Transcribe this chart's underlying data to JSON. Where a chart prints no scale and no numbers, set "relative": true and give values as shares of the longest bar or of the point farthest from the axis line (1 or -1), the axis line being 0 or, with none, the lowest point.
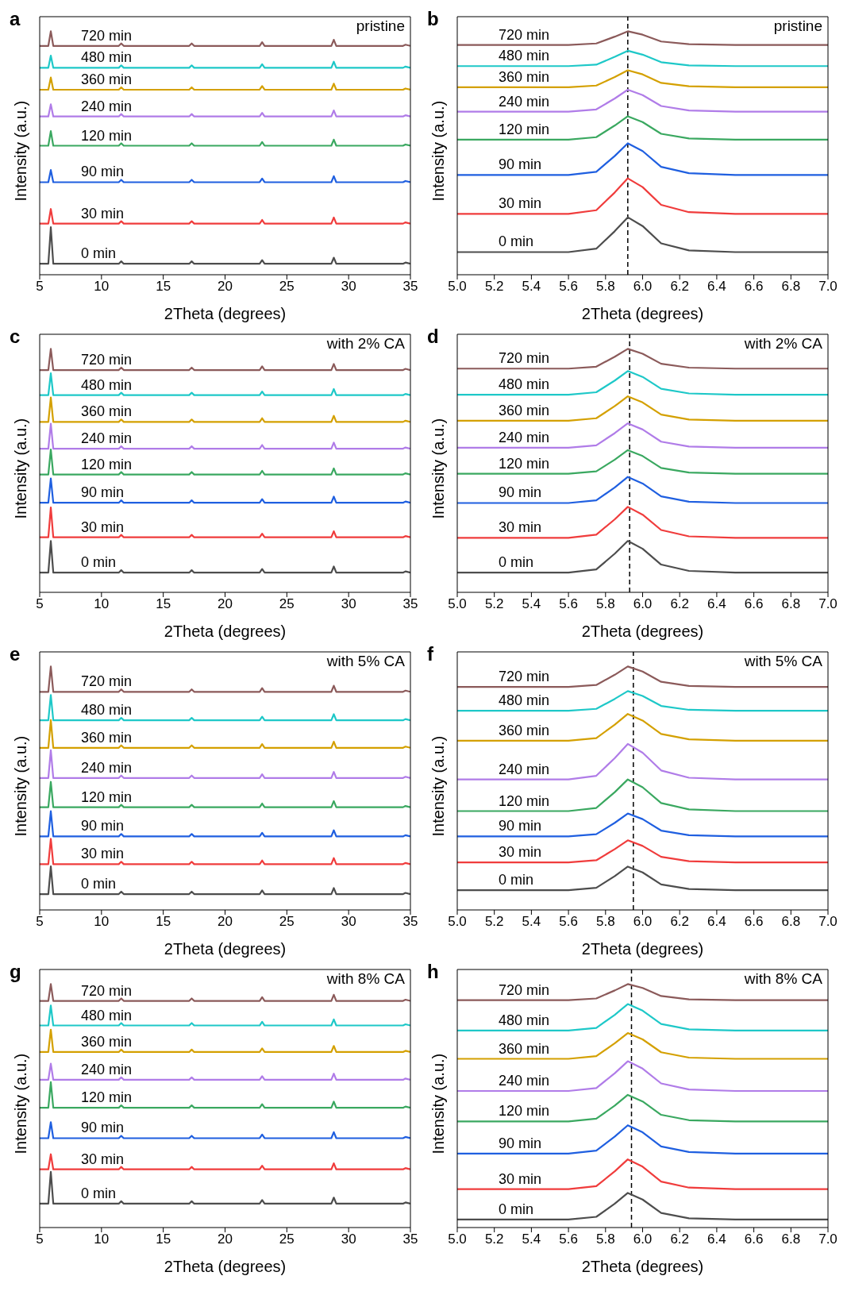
{
  "chart_data": [
    {
      "type": "line",
      "relative": true,
      "title": "a",
      "annotations": [
        "pristine"
      ],
      "xlabel": "2Theta (degrees)",
      "ylabel": "Intensity (a.u.)",
      "xlim": [
        5,
        35
      ],
      "xticks": [
        5,
        10,
        15,
        20,
        25,
        30,
        35
      ],
      "x": [
        5,
        5.7,
        5.9,
        6.1,
        11.4,
        11.6,
        11.8,
        17.1,
        17.3,
        17.5,
        22.8,
        23,
        23.2,
        28.6,
        28.8,
        29,
        34.4,
        34.6,
        35
      ],
      "series": [
        {
          "name": "0 min",
          "color": "#4d4d4d",
          "values": [
            0.045,
            0.045,
            0.195,
            0.045,
            0.045,
            0.055,
            0.045,
            0.045,
            0.055,
            0.045,
            0.045,
            0.06,
            0.045,
            0.045,
            0.07,
            0.045,
            0.045,
            0.05,
            0.045
          ]
        },
        {
          "name": "30 min",
          "color": "#f03c3c",
          "values": [
            0.21,
            0.21,
            0.27,
            0.21,
            0.21,
            0.22,
            0.21,
            0.21,
            0.22,
            0.21,
            0.21,
            0.225,
            0.21,
            0.21,
            0.235,
            0.21,
            0.21,
            0.215,
            0.21
          ]
        },
        {
          "name": "90 min",
          "color": "#1f5fe0",
          "values": [
            0.38,
            0.38,
            0.43,
            0.38,
            0.38,
            0.39,
            0.38,
            0.38,
            0.39,
            0.38,
            0.38,
            0.395,
            0.38,
            0.38,
            0.405,
            0.38,
            0.38,
            0.385,
            0.38
          ]
        },
        {
          "name": "120 min",
          "color": "#3aa860",
          "values": [
            0.53,
            0.53,
            0.59,
            0.53,
            0.53,
            0.54,
            0.53,
            0.53,
            0.54,
            0.53,
            0.53,
            0.545,
            0.53,
            0.53,
            0.555,
            0.53,
            0.53,
            0.535,
            0.53
          ]
        },
        {
          "name": "240 min",
          "color": "#b07ce8",
          "values": [
            0.65,
            0.65,
            0.7,
            0.65,
            0.65,
            0.66,
            0.65,
            0.65,
            0.66,
            0.65,
            0.65,
            0.665,
            0.65,
            0.65,
            0.675,
            0.65,
            0.65,
            0.655,
            0.65
          ]
        },
        {
          "name": "360 min",
          "color": "#d4a000",
          "values": [
            0.76,
            0.76,
            0.81,
            0.76,
            0.76,
            0.77,
            0.76,
            0.76,
            0.77,
            0.76,
            0.76,
            0.775,
            0.76,
            0.76,
            0.785,
            0.76,
            0.76,
            0.765,
            0.76
          ]
        },
        {
          "name": "480 min",
          "color": "#1ec8c8",
          "values": [
            0.85,
            0.85,
            0.9,
            0.85,
            0.85,
            0.86,
            0.85,
            0.85,
            0.86,
            0.85,
            0.85,
            0.865,
            0.85,
            0.85,
            0.875,
            0.85,
            0.85,
            0.855,
            0.85
          ]
        },
        {
          "name": "720 min",
          "color": "#8b5a5a",
          "values": [
            0.94,
            0.94,
            1,
            0.94,
            0.94,
            0.95,
            0.94,
            0.94,
            0.95,
            0.94,
            0.94,
            0.955,
            0.94,
            0.94,
            0.965,
            0.94,
            0.94,
            0.945,
            0.94
          ]
        }
      ]
    },
    {
      "type": "line",
      "relative": true,
      "title": "b",
      "annotations": [
        "pristine"
      ],
      "xlabel": "2Theta (degrees)",
      "ylabel": "Intensity (a.u.)",
      "xlim": [
        5,
        7
      ],
      "xticks": [
        {
          "value": 5,
          "label": "5.0"
        },
        5.2,
        5.4,
        5.6,
        5.8,
        {
          "value": 6,
          "label": "6.0"
        },
        6.2,
        6.4,
        6.6,
        6.8,
        {
          "value": 7,
          "label": "7.0"
        }
      ],
      "ref_lines": [
        {
          "axis": "x",
          "value": 5.92,
          "line_style": "dashed"
        }
      ],
      "x": [
        5,
        5.6,
        5.75,
        5.85,
        5.92,
        6,
        6.1,
        6.25,
        6.5,
        7
      ],
      "series": [
        {
          "name": "0 min",
          "color": "#4d4d4d",
          "values": [
            0.093,
            0.093,
            0.107,
            0.179,
            0.236,
            0.2,
            0.129,
            0.1,
            0.093,
            0.093
          ]
        },
        {
          "name": "30 min",
          "color": "#f03c3c",
          "values": [
            0.25,
            0.25,
            0.265,
            0.338,
            0.396,
            0.36,
            0.287,
            0.257,
            0.25,
            0.25
          ]
        },
        {
          "name": "90 min",
          "color": "#1f5fe0",
          "values": [
            0.41,
            0.41,
            0.423,
            0.488,
            0.54,
            0.508,
            0.443,
            0.417,
            0.41,
            0.41
          ]
        },
        {
          "name": "120 min",
          "color": "#3aa860",
          "values": [
            0.555,
            0.555,
            0.565,
            0.613,
            0.651,
            0.627,
            0.579,
            0.56,
            0.555,
            0.555
          ]
        },
        {
          "name": "240 min",
          "color": "#b07ce8",
          "values": [
            0.67,
            0.67,
            0.679,
            0.724,
            0.76,
            0.738,
            0.693,
            0.675,
            0.67,
            0.67
          ]
        },
        {
          "name": "360 min",
          "color": "#d4a000",
          "values": [
            0.77,
            0.77,
            0.777,
            0.812,
            0.84,
            0.823,
            0.788,
            0.774,
            0.77,
            0.77
          ]
        },
        {
          "name": "480 min",
          "color": "#1ec8c8",
          "values": [
            0.857,
            0.857,
            0.863,
            0.895,
            0.92,
            0.904,
            0.873,
            0.86,
            0.857,
            0.857
          ]
        },
        {
          "name": "720 min",
          "color": "#8b5a5a",
          "values": [
            0.944,
            0.944,
            0.95,
            0.978,
            1,
            0.986,
            0.958,
            0.947,
            0.944,
            0.944
          ]
        }
      ]
    },
    {
      "type": "line",
      "relative": true,
      "title": "c",
      "annotations": [
        "with 2% CA"
      ],
      "xlabel": "2Theta (degrees)",
      "ylabel": "Intensity (a.u.)",
      "xlim": [
        5,
        35
      ],
      "xticks": [
        5,
        10,
        15,
        20,
        25,
        30,
        35
      ],
      "x": [
        5,
        5.7,
        5.9,
        6.1,
        11.4,
        11.6,
        11.8,
        17.1,
        17.3,
        17.5,
        22.8,
        23,
        23.2,
        28.6,
        28.8,
        29,
        34.4,
        34.6,
        35
      ],
      "series": [
        {
          "name": "0 min",
          "color": "#4d4d4d",
          "values": [
            0.081,
            0.081,
            0.211,
            0.081,
            0.081,
            0.091,
            0.081,
            0.081,
            0.091,
            0.081,
            0.081,
            0.096,
            0.081,
            0.081,
            0.106,
            0.081,
            0.081,
            0.086,
            0.081
          ]
        },
        {
          "name": "30 min",
          "color": "#f03c3c",
          "values": [
            0.226,
            0.226,
            0.349,
            0.226,
            0.226,
            0.236,
            0.226,
            0.226,
            0.236,
            0.226,
            0.226,
            0.241,
            0.226,
            0.226,
            0.251,
            0.226,
            0.226,
            0.231,
            0.226
          ]
        },
        {
          "name": "90 min",
          "color": "#1f5fe0",
          "values": [
            0.368,
            0.368,
            0.468,
            0.368,
            0.368,
            0.378,
            0.368,
            0.368,
            0.378,
            0.368,
            0.368,
            0.383,
            0.368,
            0.368,
            0.393,
            0.368,
            0.368,
            0.373,
            0.368
          ]
        },
        {
          "name": "120 min",
          "color": "#3aa860",
          "values": [
            0.484,
            0.484,
            0.587,
            0.484,
            0.484,
            0.494,
            0.484,
            0.484,
            0.494,
            0.484,
            0.484,
            0.499,
            0.484,
            0.484,
            0.509,
            0.484,
            0.484,
            0.489,
            0.484
          ]
        },
        {
          "name": "240 min",
          "color": "#b07ce8",
          "values": [
            0.59,
            0.59,
            0.693,
            0.59,
            0.59,
            0.6,
            0.59,
            0.59,
            0.6,
            0.59,
            0.59,
            0.605,
            0.59,
            0.59,
            0.615,
            0.59,
            0.59,
            0.595,
            0.59
          ]
        },
        {
          "name": "360 min",
          "color": "#d4a000",
          "values": [
            0.7,
            0.7,
            0.8,
            0.7,
            0.7,
            0.71,
            0.7,
            0.7,
            0.71,
            0.7,
            0.7,
            0.715,
            0.7,
            0.7,
            0.725,
            0.7,
            0.7,
            0.705,
            0.7
          ]
        },
        {
          "name": "480 min",
          "color": "#1ec8c8",
          "values": [
            0.81,
            0.81,
            0.9,
            0.81,
            0.81,
            0.82,
            0.81,
            0.81,
            0.82,
            0.81,
            0.81,
            0.825,
            0.81,
            0.81,
            0.835,
            0.81,
            0.81,
            0.815,
            0.81
          ]
        },
        {
          "name": "720 min",
          "color": "#8b5a5a",
          "values": [
            0.913,
            0.913,
            1,
            0.913,
            0.913,
            0.923,
            0.913,
            0.913,
            0.923,
            0.913,
            0.913,
            0.928,
            0.913,
            0.913,
            0.938,
            0.913,
            0.913,
            0.918,
            0.913
          ]
        }
      ]
    },
    {
      "type": "line",
      "relative": true,
      "title": "d",
      "annotations": [
        "with 2% CA"
      ],
      "xlabel": "2Theta (degrees)",
      "ylabel": "Intensity (a.u.)",
      "xlim": [
        5,
        7
      ],
      "xticks": [
        {
          "value": 5,
          "label": "5.0"
        },
        5.2,
        5.4,
        5.6,
        5.8,
        {
          "value": 6,
          "label": "6.0"
        },
        6.2,
        6.4,
        6.6,
        6.8,
        {
          "value": 7,
          "label": "7.0"
        }
      ],
      "ref_lines": [
        {
          "axis": "x",
          "value": 5.93,
          "line_style": "dashed"
        }
      ],
      "x": [
        5,
        5.6,
        5.75,
        5.85,
        5.92,
        6,
        6.1,
        6.25,
        6.5,
        7
      ],
      "series": [
        {
          "name": "0 min",
          "color": "#4d4d4d",
          "values": [
            0.081,
            0.081,
            0.094,
            0.159,
            0.211,
            0.179,
            0.114,
            0.088,
            0.081,
            0.081
          ]
        },
        {
          "name": "30 min",
          "color": "#f03c3c",
          "values": [
            0.224,
            0.224,
            0.237,
            0.3,
            0.351,
            0.319,
            0.256,
            0.23,
            0.224,
            0.224
          ]
        },
        {
          "name": "90 min",
          "color": "#1f5fe0",
          "values": [
            0.367,
            0.367,
            0.378,
            0.431,
            0.474,
            0.447,
            0.394,
            0.372,
            0.367,
            0.367
          ]
        },
        {
          "name": "120 min",
          "color": "#3aa860",
          "values": [
            0.487,
            0.487,
            0.497,
            0.545,
            0.584,
            0.56,
            0.511,
            0.492,
            0.487,
            0.487
          ]
        },
        {
          "name": "240 min",
          "color": "#b07ce8",
          "values": [
            0.594,
            0.594,
            0.604,
            0.654,
            0.694,
            0.669,
            0.619,
            0.599,
            0.594,
            0.594
          ]
        },
        {
          "name": "360 min",
          "color": "#d4a000",
          "values": [
            0.705,
            0.705,
            0.715,
            0.765,
            0.805,
            0.78,
            0.73,
            0.71,
            0.705,
            0.705
          ]
        },
        {
          "name": "480 min",
          "color": "#1ec8c8",
          "values": [
            0.812,
            0.812,
            0.822,
            0.87,
            0.909,
            0.885,
            0.836,
            0.817,
            0.812,
            0.812
          ]
        },
        {
          "name": "720 min",
          "color": "#8b5a5a",
          "values": [
            0.919,
            0.919,
            0.927,
            0.968,
            1,
            0.98,
            0.939,
            0.923,
            0.919,
            0.919
          ]
        }
      ]
    },
    {
      "type": "line",
      "relative": true,
      "title": "e",
      "annotations": [
        "with 5% CA"
      ],
      "xlabel": "2Theta (degrees)",
      "ylabel": "Intensity (a.u.)",
      "xlim": [
        5,
        35
      ],
      "xticks": [
        5,
        10,
        15,
        20,
        25,
        30,
        35
      ],
      "x": [
        5,
        5.7,
        5.9,
        6.1,
        11.4,
        11.6,
        11.8,
        17.1,
        17.3,
        17.5,
        22.8,
        23,
        23.2,
        28.6,
        28.8,
        29,
        34.4,
        34.6,
        35
      ],
      "series": [
        {
          "name": "0 min",
          "color": "#4d4d4d",
          "values": [
            0.065,
            0.065,
            0.179,
            0.065,
            0.065,
            0.075,
            0.065,
            0.065,
            0.075,
            0.065,
            0.065,
            0.08,
            0.065,
            0.065,
            0.09,
            0.065,
            0.065,
            0.07,
            0.065
          ]
        },
        {
          "name": "30 min",
          "color": "#f03c3c",
          "values": [
            0.188,
            0.188,
            0.292,
            0.188,
            0.188,
            0.198,
            0.188,
            0.188,
            0.198,
            0.188,
            0.188,
            0.203,
            0.188,
            0.188,
            0.213,
            0.188,
            0.188,
            0.193,
            0.188
          ]
        },
        {
          "name": "90 min",
          "color": "#1f5fe0",
          "values": [
            0.302,
            0.302,
            0.406,
            0.302,
            0.302,
            0.312,
            0.302,
            0.302,
            0.312,
            0.302,
            0.302,
            0.317,
            0.302,
            0.302,
            0.327,
            0.302,
            0.302,
            0.307,
            0.302
          ]
        },
        {
          "name": "120 min",
          "color": "#3aa860",
          "values": [
            0.422,
            0.422,
            0.526,
            0.422,
            0.422,
            0.432,
            0.422,
            0.422,
            0.432,
            0.422,
            0.422,
            0.437,
            0.422,
            0.422,
            0.447,
            0.422,
            0.422,
            0.427,
            0.422
          ]
        },
        {
          "name": "240 min",
          "color": "#b07ce8",
          "values": [
            0.542,
            0.542,
            0.656,
            0.542,
            0.542,
            0.552,
            0.542,
            0.542,
            0.552,
            0.542,
            0.542,
            0.557,
            0.542,
            0.542,
            0.567,
            0.542,
            0.542,
            0.547,
            0.542
          ]
        },
        {
          "name": "360 min",
          "color": "#d4a000",
          "values": [
            0.666,
            0.666,
            0.78,
            0.666,
            0.666,
            0.676,
            0.666,
            0.666,
            0.676,
            0.666,
            0.666,
            0.681,
            0.666,
            0.666,
            0.691,
            0.666,
            0.666,
            0.671,
            0.666
          ]
        },
        {
          "name": "480 min",
          "color": "#1ec8c8",
          "values": [
            0.779,
            0.779,
            0.883,
            0.779,
            0.779,
            0.789,
            0.779,
            0.779,
            0.789,
            0.779,
            0.779,
            0.794,
            0.779,
            0.779,
            0.804,
            0.779,
            0.779,
            0.784,
            0.779
          ]
        },
        {
          "name": "720 min",
          "color": "#8b5a5a",
          "values": [
            0.896,
            0.896,
            1,
            0.896,
            0.896,
            0.906,
            0.896,
            0.896,
            0.906,
            0.896,
            0.896,
            0.911,
            0.896,
            0.896,
            0.921,
            0.896,
            0.896,
            0.901,
            0.896
          ]
        }
      ]
    },
    {
      "type": "line",
      "relative": true,
      "title": "f",
      "annotations": [
        "with 5% CA"
      ],
      "xlabel": "2Theta (degrees)",
      "ylabel": "Intensity (a.u.)",
      "xlim": [
        5,
        7
      ],
      "xticks": [
        {
          "value": 5,
          "label": "5.0"
        },
        5.2,
        5.4,
        5.6,
        5.8,
        {
          "value": 6,
          "label": "6.0"
        },
        6.2,
        6.4,
        6.6,
        6.8,
        {
          "value": 7,
          "label": "7.0"
        }
      ],
      "ref_lines": [
        {
          "axis": "x",
          "value": 5.95,
          "line_style": "dashed"
        }
      ],
      "x": [
        5,
        5.6,
        5.75,
        5.85,
        5.92,
        6,
        6.1,
        6.25,
        6.5,
        7
      ],
      "series": [
        {
          "name": "0 min",
          "color": "#4d4d4d",
          "values": [
            0.081,
            0.081,
            0.091,
            0.139,
            0.178,
            0.154,
            0.105,
            0.086,
            0.081,
            0.081
          ]
        },
        {
          "name": "30 min",
          "color": "#f03c3c",
          "values": [
            0.195,
            0.195,
            0.204,
            0.25,
            0.286,
            0.263,
            0.218,
            0.2,
            0.195,
            0.195
          ]
        },
        {
          "name": "90 min",
          "color": "#1f5fe0",
          "values": [
            0.302,
            0.302,
            0.311,
            0.358,
            0.396,
            0.373,
            0.326,
            0.307,
            0.302,
            0.302
          ]
        },
        {
          "name": "120 min",
          "color": "#3aa860",
          "values": [
            0.406,
            0.406,
            0.419,
            0.484,
            0.536,
            0.504,
            0.439,
            0.413,
            0.406,
            0.406
          ]
        },
        {
          "name": "240 min",
          "color": "#b07ce8",
          "values": [
            0.536,
            0.536,
            0.551,
            0.624,
            0.682,
            0.646,
            0.573,
            0.543,
            0.536,
            0.536
          ]
        },
        {
          "name": "360 min",
          "color": "#d4a000",
          "values": [
            0.695,
            0.695,
            0.706,
            0.761,
            0.805,
            0.778,
            0.723,
            0.701,
            0.695,
            0.695
          ]
        },
        {
          "name": "480 min",
          "color": "#1ec8c8",
          "values": [
            0.818,
            0.818,
            0.826,
            0.867,
            0.899,
            0.879,
            0.838,
            0.822,
            0.818,
            0.818
          ]
        },
        {
          "name": "720 min",
          "color": "#8b5a5a",
          "values": [
            0.916,
            0.916,
            0.924,
            0.966,
            1,
            0.979,
            0.937,
            0.92,
            0.916,
            0.916
          ]
        }
      ]
    },
    {
      "type": "line",
      "relative": true,
      "title": "g",
      "annotations": [
        "with 8% CA"
      ],
      "xlabel": "2Theta (degrees)",
      "ylabel": "Intensity (a.u.)",
      "xlim": [
        5,
        35
      ],
      "xticks": [
        5,
        10,
        15,
        20,
        25,
        30,
        35
      ],
      "x": [
        5,
        5.7,
        5.9,
        6.1,
        11.4,
        11.6,
        11.8,
        17.1,
        17.3,
        17.5,
        22.8,
        23,
        23.2,
        28.6,
        28.8,
        29,
        34.4,
        34.6,
        35
      ],
      "series": [
        {
          "name": "0 min",
          "color": "#4d4d4d",
          "values": [
            0.098,
            0.098,
            0.229,
            0.098,
            0.098,
            0.108,
            0.098,
            0.098,
            0.108,
            0.098,
            0.098,
            0.113,
            0.098,
            0.098,
            0.123,
            0.098,
            0.098,
            0.103,
            0.098
          ]
        },
        {
          "name": "30 min",
          "color": "#f03c3c",
          "values": [
            0.239,
            0.239,
            0.301,
            0.239,
            0.239,
            0.249,
            0.239,
            0.239,
            0.249,
            0.239,
            0.239,
            0.254,
            0.239,
            0.239,
            0.264,
            0.239,
            0.239,
            0.244,
            0.239
          ]
        },
        {
          "name": "90 min",
          "color": "#1f5fe0",
          "values": [
            0.367,
            0.367,
            0.433,
            0.367,
            0.367,
            0.377,
            0.367,
            0.367,
            0.377,
            0.367,
            0.367,
            0.382,
            0.367,
            0.367,
            0.392,
            0.367,
            0.367,
            0.372,
            0.367
          ]
        },
        {
          "name": "120 min",
          "color": "#3aa860",
          "values": [
            0.492,
            0.492,
            0.597,
            0.492,
            0.492,
            0.502,
            0.492,
            0.492,
            0.502,
            0.492,
            0.492,
            0.507,
            0.492,
            0.492,
            0.517,
            0.492,
            0.492,
            0.497,
            0.492
          ]
        },
        {
          "name": "240 min",
          "color": "#b07ce8",
          "values": [
            0.607,
            0.607,
            0.673,
            0.607,
            0.607,
            0.617,
            0.607,
            0.607,
            0.617,
            0.607,
            0.607,
            0.622,
            0.607,
            0.607,
            0.632,
            0.607,
            0.607,
            0.612,
            0.607
          ]
        },
        {
          "name": "360 min",
          "color": "#d4a000",
          "values": [
            0.721,
            0.721,
            0.813,
            0.721,
            0.721,
            0.731,
            0.721,
            0.721,
            0.731,
            0.721,
            0.721,
            0.736,
            0.721,
            0.721,
            0.746,
            0.721,
            0.721,
            0.726,
            0.721
          ]
        },
        {
          "name": "480 min",
          "color": "#1ec8c8",
          "values": [
            0.83,
            0.83,
            0.912,
            0.83,
            0.83,
            0.84,
            0.83,
            0.83,
            0.84,
            0.83,
            0.83,
            0.845,
            0.83,
            0.83,
            0.855,
            0.83,
            0.83,
            0.835,
            0.83
          ]
        },
        {
          "name": "720 min",
          "color": "#8b5a5a",
          "values": [
            0.931,
            0.931,
            1,
            0.931,
            0.931,
            0.941,
            0.931,
            0.931,
            0.941,
            0.931,
            0.931,
            0.946,
            0.931,
            0.931,
            0.956,
            0.931,
            0.931,
            0.936,
            0.931
          ]
        }
      ]
    },
    {
      "type": "line",
      "relative": true,
      "title": "h",
      "annotations": [
        "with 8% CA"
      ],
      "xlabel": "2Theta (degrees)",
      "ylabel": "Intensity (a.u.)",
      "xlim": [
        5,
        7
      ],
      "xticks": [
        {
          "value": 5,
          "label": "5.0"
        },
        5.2,
        5.4,
        5.6,
        5.8,
        {
          "value": 6,
          "label": "6.0"
        },
        6.2,
        6.4,
        6.6,
        6.8,
        {
          "value": 7,
          "label": "7.0"
        }
      ],
      "ref_lines": [
        {
          "axis": "x",
          "value": 5.94,
          "line_style": "dashed"
        }
      ],
      "x": [
        5,
        5.6,
        5.75,
        5.85,
        5.92,
        6,
        6.1,
        6.25,
        6.5,
        7
      ],
      "series": [
        {
          "name": "0 min",
          "color": "#4d4d4d",
          "values": [
            0.033,
            0.033,
            0.044,
            0.098,
            0.142,
            0.115,
            0.06,
            0.038,
            0.033,
            0.033
          ]
        },
        {
          "name": "30 min",
          "color": "#f03c3c",
          "values": [
            0.158,
            0.158,
            0.17,
            0.231,
            0.28,
            0.25,
            0.189,
            0.164,
            0.158,
            0.158
          ]
        },
        {
          "name": "90 min",
          "color": "#1f5fe0",
          "values": [
            0.304,
            0.304,
            0.316,
            0.374,
            0.42,
            0.391,
            0.333,
            0.31,
            0.304,
            0.304
          ]
        },
        {
          "name": "120 min",
          "color": "#3aa860",
          "values": [
            0.436,
            0.436,
            0.447,
            0.501,
            0.545,
            0.518,
            0.463,
            0.441,
            0.436,
            0.436
          ]
        },
        {
          "name": "240 min",
          "color": "#b07ce8",
          "values": [
            0.561,
            0.561,
            0.573,
            0.634,
            0.683,
            0.653,
            0.592,
            0.567,
            0.561,
            0.561
          ]
        },
        {
          "name": "360 min",
          "color": "#d4a000",
          "values": [
            0.693,
            0.693,
            0.704,
            0.757,
            0.799,
            0.773,
            0.72,
            0.698,
            0.693,
            0.693
          ]
        },
        {
          "name": "480 min",
          "color": "#1ec8c8",
          "values": [
            0.809,
            0.809,
            0.82,
            0.874,
            0.918,
            0.891,
            0.836,
            0.814,
            0.809,
            0.809
          ]
        },
        {
          "name": "720 min",
          "color": "#8b5a5a",
          "values": [
            0.934,
            0.934,
            0.941,
            0.974,
            1,
            0.984,
            0.951,
            0.937,
            0.934,
            0.934
          ]
        }
      ]
    }
  ]
}
